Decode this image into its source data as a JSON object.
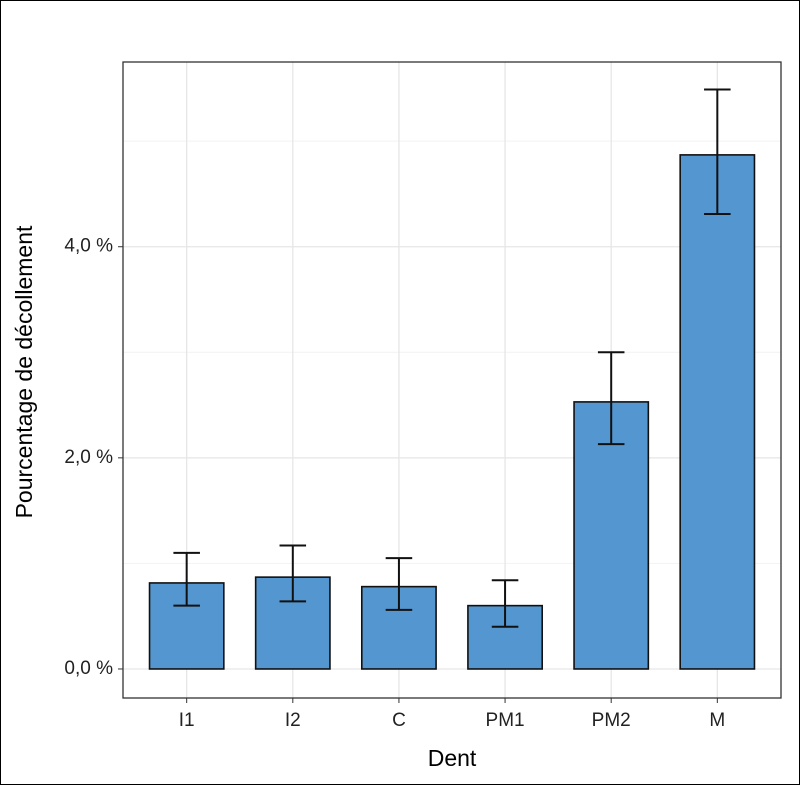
{
  "chart_data": {
    "type": "bar",
    "x_label": "Dent",
    "y_label": "Pourcentage de décollement",
    "categories": [
      "I1",
      "I2",
      "C",
      "PM1",
      "PM2",
      "M"
    ],
    "values": [
      0.815,
      0.87,
      0.78,
      0.6,
      2.53,
      4.87
    ],
    "lower": [
      0.6,
      0.64,
      0.56,
      0.4,
      2.13,
      4.31
    ],
    "upper": [
      1.1,
      1.17,
      1.05,
      0.84,
      3.0,
      5.49
    ],
    "color": "#5496d0",
    "ylim": [
      -0.275,
      5.75
    ],
    "yticks": [
      {
        "value": 0,
        "label": "0,0 %"
      },
      {
        "value": 2,
        "label": "2,0 %"
      },
      {
        "value": 4,
        "label": "4,0 %"
      }
    ],
    "minor_yticks": [
      1,
      3,
      5
    ],
    "grid": true
  }
}
